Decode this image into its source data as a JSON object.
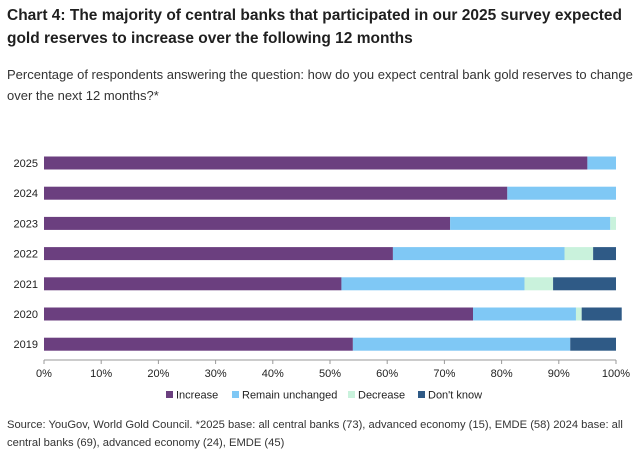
{
  "title": "Chart 4: The majority of central banks that participated in our 2025 survey expected gold reserves to increase over the following 12 months",
  "subtitle": "Percentage of respondents answering the question: how do you expect central bank gold reserves to change over the next 12 months?*",
  "source": "Source: YouGov, World Gold Council. *2025 base: all central banks (73), advanced economy (15), EMDE (58) 2024 base: all central banks (69), advanced economy (24), EMDE (45)",
  "colors": {
    "Increase": "#6b3f7f",
    "Remain unchanged": "#7fc8f5",
    "Decrease": "#c9f2dc",
    "Don't know": "#2f5a86"
  },
  "chart_data": {
    "type": "bar",
    "orientation": "horizontal",
    "stacked": true,
    "categories": [
      "2025",
      "2024",
      "2023",
      "2022",
      "2021",
      "2020",
      "2019"
    ],
    "series": [
      {
        "name": "Increase",
        "values": [
          95,
          81,
          71,
          61,
          52,
          75,
          54
        ]
      },
      {
        "name": "Remain unchanged",
        "values": [
          5,
          19,
          28,
          30,
          32,
          18,
          38
        ]
      },
      {
        "name": "Decrease",
        "values": [
          0,
          0,
          1,
          5,
          5,
          1,
          0
        ]
      },
      {
        "name": "Don't know",
        "values": [
          0,
          0,
          0,
          4,
          11,
          7,
          8
        ]
      }
    ],
    "x_ticks": [
      "0%",
      "10%",
      "20%",
      "30%",
      "40%",
      "50%",
      "60%",
      "70%",
      "80%",
      "90%",
      "100%"
    ],
    "xlim": [
      0,
      100
    ],
    "grid": false,
    "legend_position": "bottom"
  }
}
